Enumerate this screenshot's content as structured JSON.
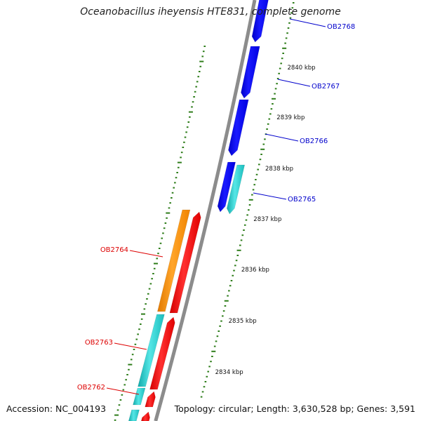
{
  "title": "Oceanobacillus iheyensis HTE831, complete genome",
  "footer": {
    "accession": "Accession: NC_004193",
    "summary": "Topology: circular; Length: 3,630,528 bp; Genes: 3,591"
  },
  "colors": {
    "backbone": "#8c8c8c",
    "tick": "#2e7d1a",
    "label_forward": "#0000cc",
    "label_reverse": "#dd0000",
    "gene_blue": "#0000ff",
    "gene_cyan": "#22cccc",
    "gene_red": "#ff0000",
    "gene_orange": "#ff8c00"
  },
  "scale_labels": [
    {
      "text": "2840 kbp"
    },
    {
      "text": "2839 kbp"
    },
    {
      "text": "2838 kbp"
    },
    {
      "text": "2837 kbp"
    },
    {
      "text": "2836 kbp"
    },
    {
      "text": "2835 kbp"
    },
    {
      "text": "2834 kbp"
    }
  ],
  "genes": [
    {
      "label": "OB2768",
      "strand": "forward",
      "color": "blue"
    },
    {
      "label": "OB2767",
      "strand": "forward",
      "color": "blue"
    },
    {
      "label": "OB2766",
      "strand": "forward",
      "color": "blue"
    },
    {
      "label": "OB2765",
      "strand": "forward",
      "color": "blue"
    },
    {
      "label": "",
      "strand": "forward",
      "color": "cyan"
    },
    {
      "label": "OB2764",
      "strand": "reverse",
      "color": "orange"
    },
    {
      "label": "",
      "strand": "reverse",
      "color": "red"
    },
    {
      "label": "OB2763",
      "strand": "reverse",
      "color": "cyan"
    },
    {
      "label": "",
      "strand": "reverse",
      "color": "red"
    },
    {
      "label": "OB2762",
      "strand": "reverse",
      "color": "cyan"
    },
    {
      "label": "",
      "strand": "reverse",
      "color": "red"
    }
  ]
}
